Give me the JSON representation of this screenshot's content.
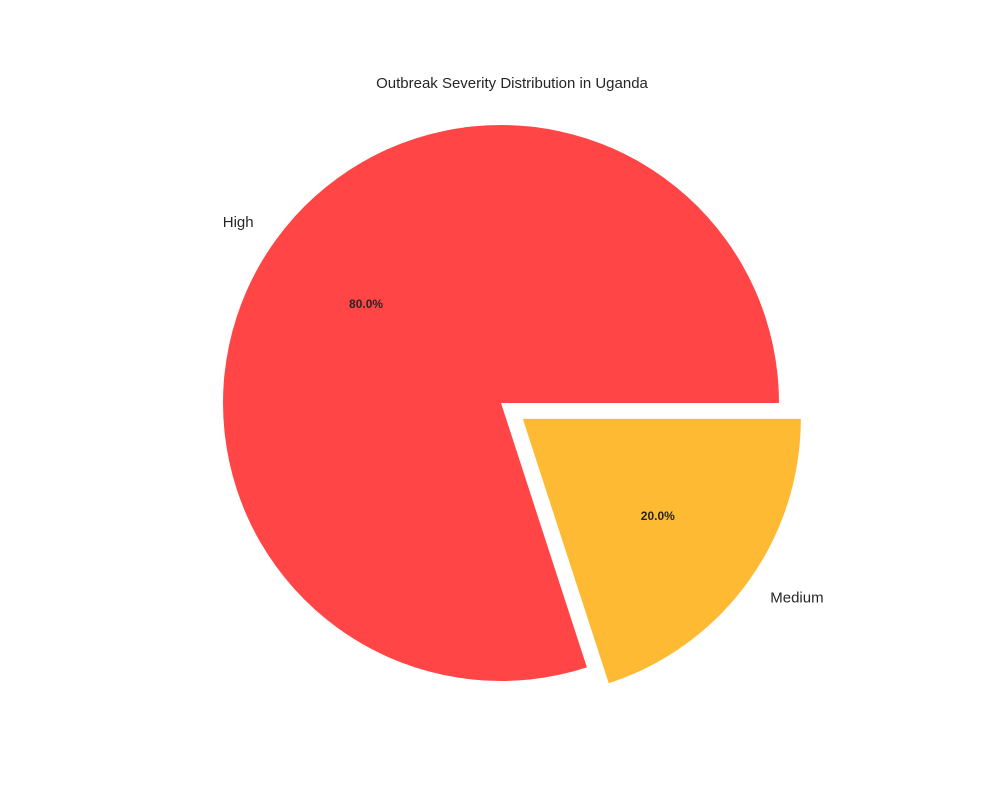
{
  "chart_data": {
    "type": "pie",
    "title": "Outbreak Severity Distribution in Uganda",
    "labels": [
      "High",
      "Medium"
    ],
    "values": [
      80.0,
      20.0
    ],
    "percent_labels": [
      "80.0%",
      "20.0%"
    ],
    "colors": [
      "#ff4545",
      "#ffba33"
    ],
    "exploded": [
      "Medium"
    ],
    "start_angle_deg": 0,
    "direction": "counterclockwise"
  }
}
